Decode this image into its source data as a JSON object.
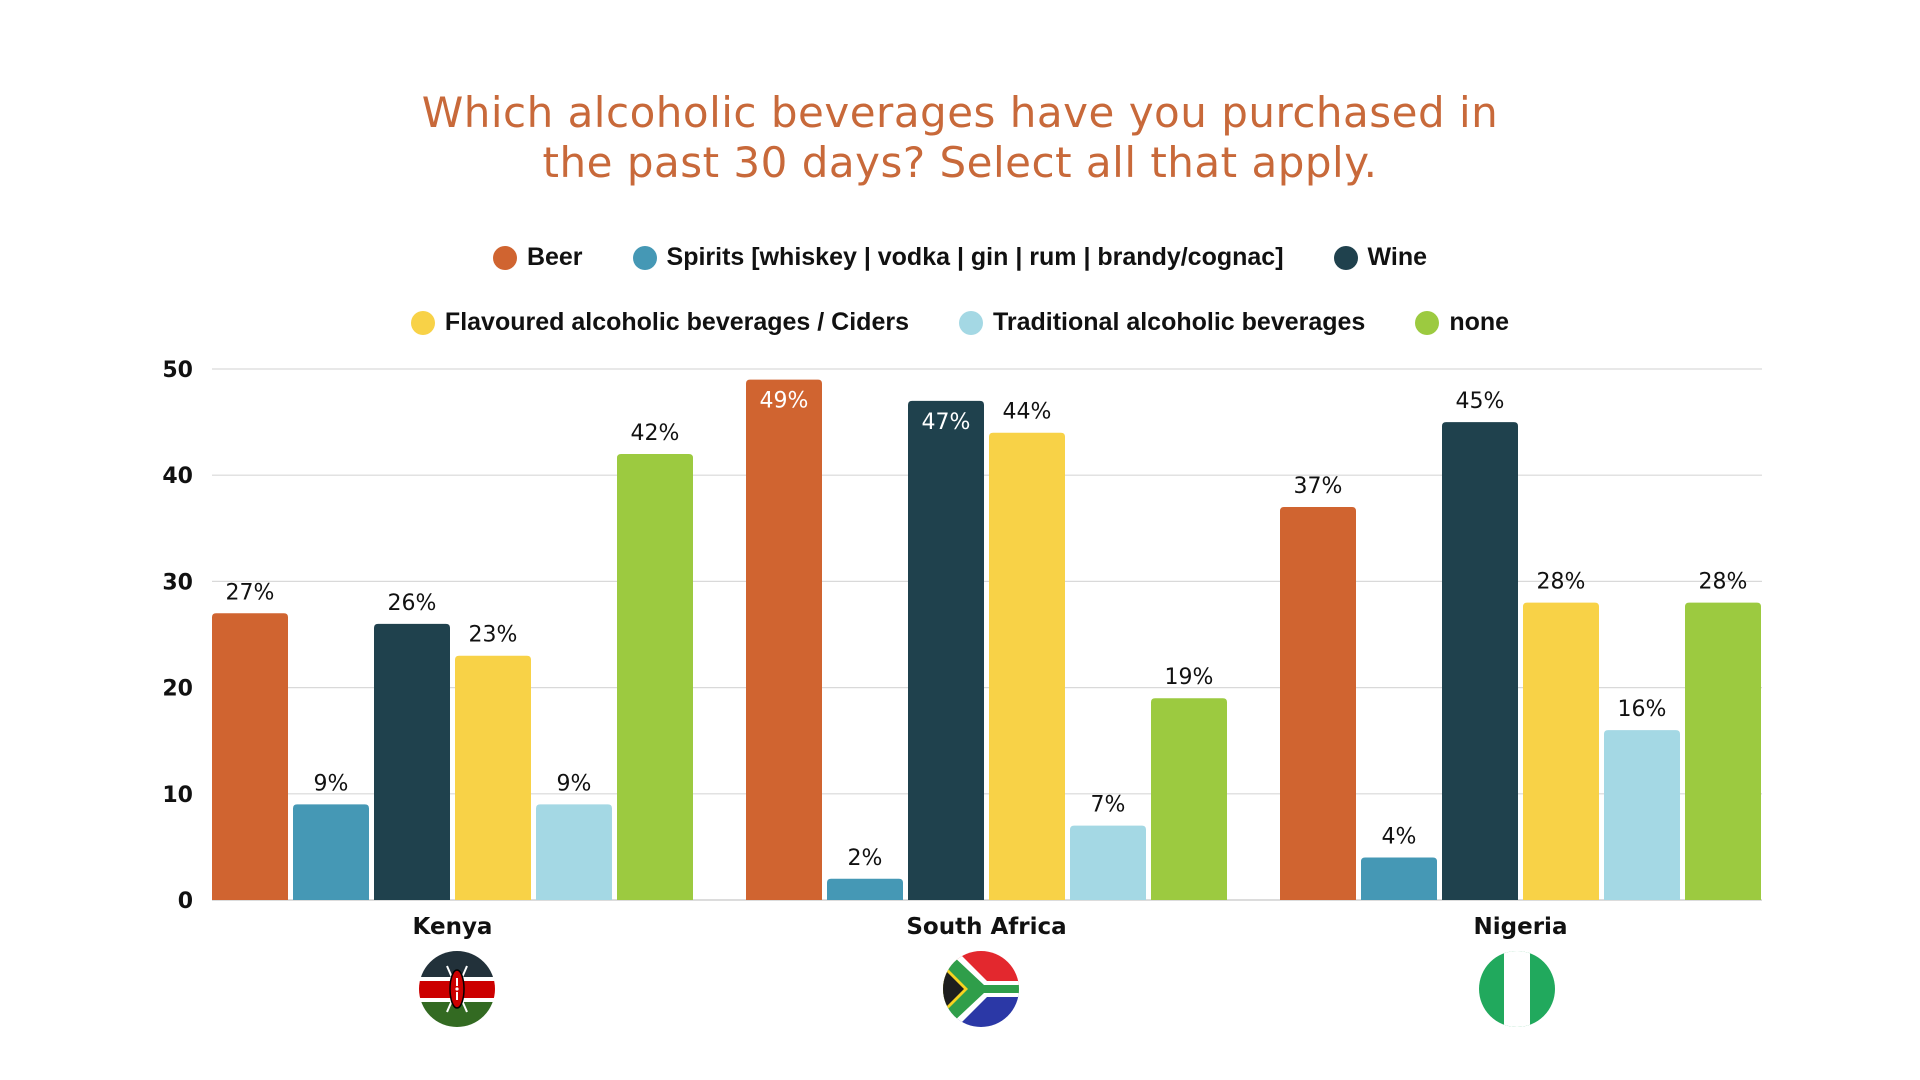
{
  "title": {
    "line1": "Which alcoholic beverages have you purchased in",
    "line2": "the past 30 days? Select all that apply."
  },
  "colors": {
    "title": "#C8693A",
    "gridline": "#D9D9D9",
    "text": "#111111"
  },
  "legend": {
    "rows": [
      [
        {
          "label": "Beer",
          "color": "#D06430"
        },
        {
          "label": "Spirits [whiskey | vodka | gin | rum | brandy/cognac]",
          "color": "#4598B5"
        },
        {
          "label": "Wine",
          "color": "#1F414D"
        }
      ],
      [
        {
          "label": "Flavoured alcoholic beverages / Ciders",
          "color": "#F8D247"
        },
        {
          "label": "Traditional alcoholic beverages",
          "color": "#A4D8E4"
        },
        {
          "label": "none",
          "color": "#9CCA40"
        }
      ]
    ]
  },
  "flags": [
    {
      "country": "Kenya",
      "icon": "kenya-flag-icon"
    },
    {
      "country": "South Africa",
      "icon": "south-africa-flag-icon"
    },
    {
      "country": "Nigeria",
      "icon": "nigeria-flag-icon"
    }
  ],
  "chart_data": {
    "type": "bar",
    "title": "Which alcoholic beverages have you purchased in the past 30 days? Select all that apply.",
    "xlabel": "",
    "ylabel": "",
    "categories": [
      "Kenya",
      "South Africa",
      "Nigeria"
    ],
    "ylim": [
      0,
      50
    ],
    "yticks": [
      0,
      10,
      20,
      30,
      40,
      50
    ],
    "grid": true,
    "legend_position": "top-center",
    "value_suffix": "%",
    "series": [
      {
        "name": "Beer",
        "color": "#D06430",
        "values": [
          27,
          49,
          37
        ]
      },
      {
        "name": "Spirits [whiskey | vodka | gin | rum | brandy/cognac]",
        "color": "#4598B5",
        "values": [
          9,
          2,
          4
        ]
      },
      {
        "name": "Wine",
        "color": "#1F414D",
        "values": [
          26,
          47,
          45
        ]
      },
      {
        "name": "Flavoured alcoholic beverages / Ciders",
        "color": "#F8D247",
        "values": [
          23,
          44,
          28
        ]
      },
      {
        "name": "Traditional alcoholic beverages",
        "color": "#A4D8E4",
        "values": [
          9,
          7,
          16
        ]
      },
      {
        "name": "none",
        "color": "#9CCA40",
        "values": [
          42,
          19,
          28
        ]
      }
    ],
    "data_labels": [
      [
        "27%",
        "49%",
        "37%"
      ],
      [
        "9%",
        "2%",
        "4%"
      ],
      [
        "26%",
        "47%",
        "45%"
      ],
      [
        "23%",
        "44%",
        "28%"
      ],
      [
        "9%",
        "7%",
        "16%"
      ],
      [
        "42%",
        "19%",
        "28%"
      ]
    ]
  }
}
